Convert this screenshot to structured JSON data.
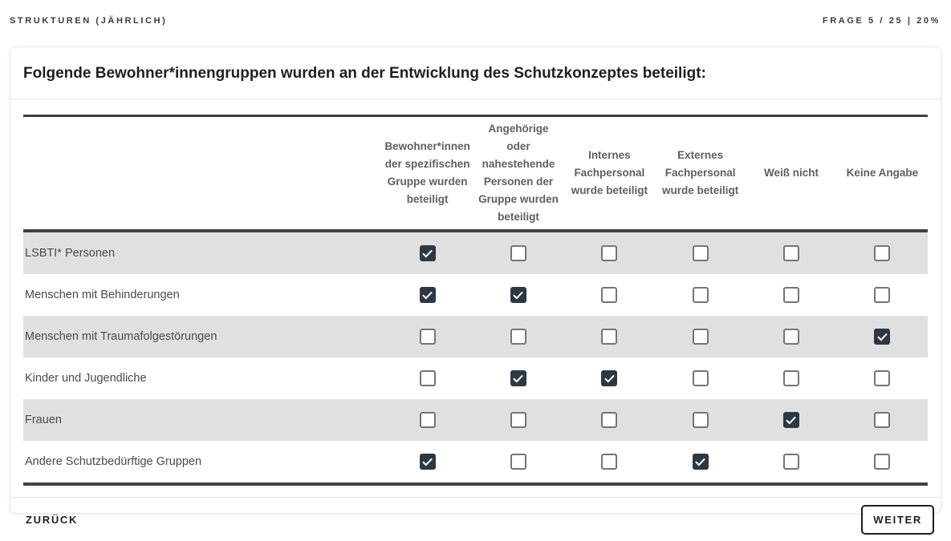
{
  "topbar": {
    "section_label": "STRUKTUREN (JÄHRLICH)",
    "progress_label": "FRAGE 5 / 25 | 20%"
  },
  "question": {
    "title": "Folgende Bewohner*innengruppen wurden an der Entwicklung des Schutzkonzeptes beteiligt:"
  },
  "table": {
    "columns": [
      "Bewohner*innen der spezifischen Gruppe wurden beteiligt",
      "Angehörige oder nahestehende Personen der Gruppe wurden beteiligt",
      "Internes Fachpersonal wurde beteiligt",
      "Externes Fachpersonal wurde beteiligt",
      "Weiß nicht",
      "Keine Angabe"
    ],
    "rows": [
      {
        "label": "LSBTI* Personen",
        "checks": [
          true,
          false,
          false,
          false,
          false,
          false
        ]
      },
      {
        "label": "Menschen mit Behinderungen",
        "checks": [
          true,
          true,
          false,
          false,
          false,
          false
        ]
      },
      {
        "label": "Menschen mit Traumafolgestörungen",
        "checks": [
          false,
          false,
          false,
          false,
          false,
          true
        ]
      },
      {
        "label": "Kinder und Jugendliche",
        "checks": [
          false,
          true,
          true,
          false,
          false,
          false
        ]
      },
      {
        "label": "Frauen",
        "checks": [
          false,
          false,
          false,
          false,
          true,
          false
        ]
      },
      {
        "label": "Andere Schutzbedürftige Gruppen",
        "checks": [
          true,
          false,
          false,
          true,
          false,
          false
        ]
      }
    ]
  },
  "footer": {
    "back_label": "ZURÜCK",
    "next_label": "WEITER"
  },
  "colors": {
    "checkbox_checked": "#2d3843",
    "checkbox_border": "#757575",
    "row_stripe": "#e0e0e0",
    "table_border": "#404040",
    "header_text": "#5f5f5f"
  }
}
